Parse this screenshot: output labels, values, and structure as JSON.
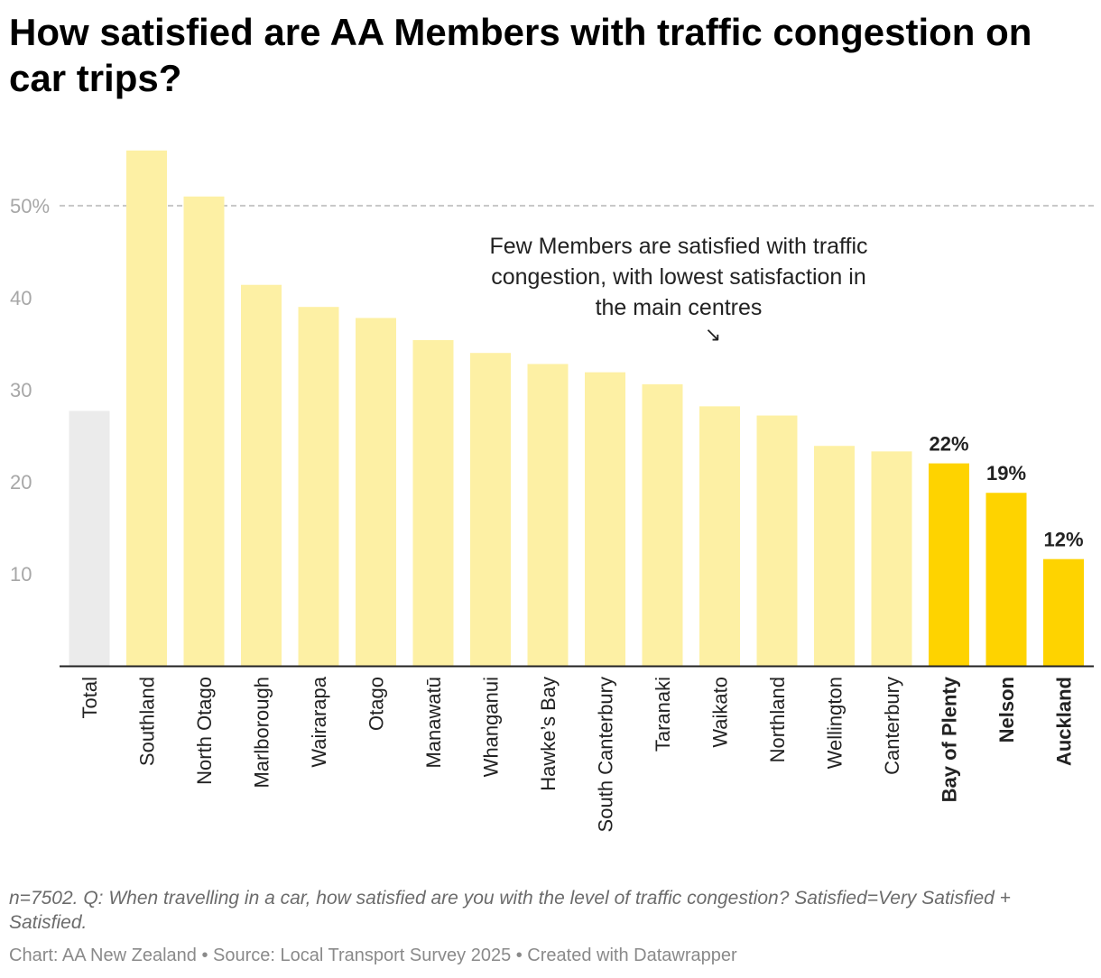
{
  "chart_data": {
    "type": "bar",
    "title": "How satisfied are AA Members with traffic congestion on car trips?",
    "xlabel": "",
    "ylabel": "",
    "ylim": [
      0,
      57
    ],
    "y_ticks": [
      {
        "value": 50,
        "label": "50%"
      },
      {
        "value": 40,
        "label": "40"
      },
      {
        "value": 30,
        "label": "30"
      },
      {
        "value": 20,
        "label": "20"
      },
      {
        "value": 10,
        "label": "10"
      }
    ],
    "categories": [
      "Total",
      "Southland",
      "North Otago",
      "Marlborough",
      "Wairarapa",
      "Otago",
      "Manawatū",
      "Whanganui",
      "Hawke’s Bay",
      "South Canterbury",
      "Taranaki",
      "Waikato",
      "Northland",
      "Wellington",
      "Canterbury",
      "Bay of Plenty",
      "Nelson",
      "Auckland"
    ],
    "values": [
      27.7,
      56,
      51,
      41.4,
      39,
      37.8,
      35.4,
      34,
      32.8,
      31.9,
      30.6,
      28.2,
      27.2,
      23.9,
      23.3,
      22,
      18.8,
      11.6
    ],
    "bar_styles": [
      "total",
      "light",
      "light",
      "light",
      "light",
      "light",
      "light",
      "light",
      "light",
      "light",
      "light",
      "light",
      "light",
      "light",
      "light",
      "highlight",
      "highlight",
      "highlight"
    ],
    "data_labels": [
      {
        "category": "Bay of Plenty",
        "label": "22%"
      },
      {
        "category": "Nelson",
        "label": "19%"
      },
      {
        "category": "Auckland",
        "label": "12%"
      }
    ],
    "reference_line": {
      "value": 50,
      "style": "dashed"
    },
    "annotation": {
      "lines": [
        "Few Members are satisfied with traffic",
        "congestion, with lowest satisfaction in",
        "the main centres"
      ],
      "arrow": "↘"
    },
    "colors": {
      "total": "#ebebeb",
      "light": "#fdf0a4",
      "highlight": "#fed300",
      "axis": "#222222",
      "tick_text": "#a7a7a7",
      "reference_line": "#b5b5b5",
      "category_text": "#222222",
      "value_label": "#222222"
    },
    "grid": false,
    "legend": "none"
  },
  "footer": {
    "notes": "n=7502. Q: When travelling in a car, how satisfied are you with the level of traffic congestion? Satisfied=Very Satisfied + Satisfied.",
    "credit": "Chart: AA New Zealand • Source: Local Transport Survey 2025 • Created with Datawrapper"
  }
}
